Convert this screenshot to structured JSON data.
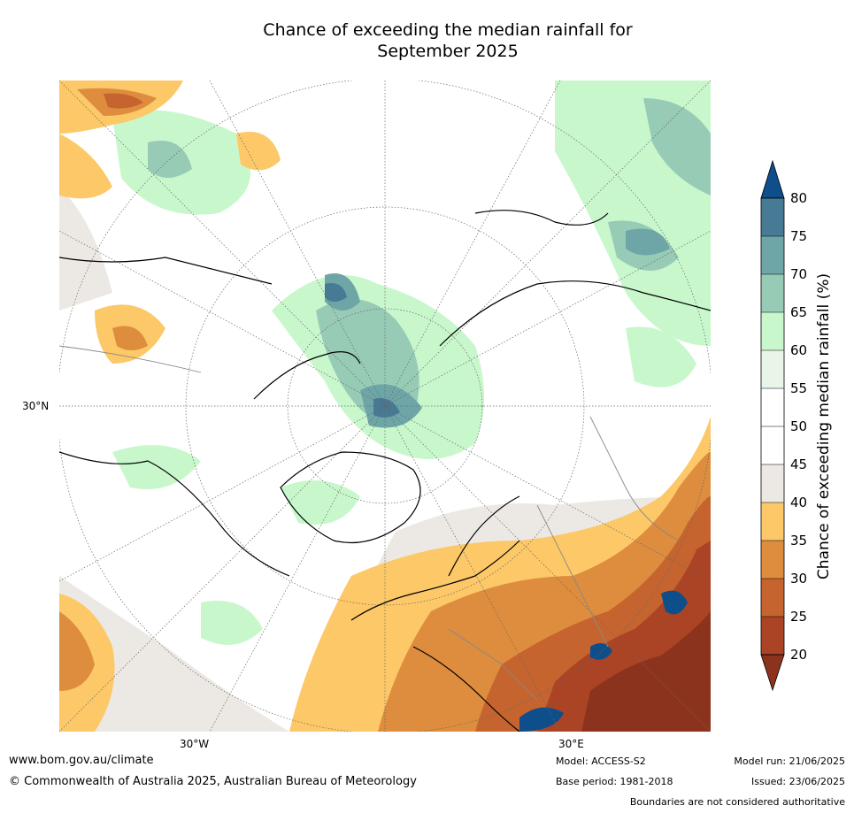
{
  "title": {
    "line1": "Chance of exceeding the median rainfall for",
    "line2": "September 2025"
  },
  "map": {
    "projection": "north-polar-stereographic",
    "graticule_labels": {
      "latitude": "30°N",
      "longitude_left": "30°W",
      "longitude_right": "30°E"
    }
  },
  "colorbar": {
    "label": "Chance of exceeding median rainfall (%)",
    "ticks": [
      "80",
      "75",
      "70",
      "65",
      "60",
      "55",
      "50",
      "45",
      "40",
      "35",
      "30",
      "25",
      "20"
    ],
    "colors": {
      "above_80": "#0e4e8a",
      "75_80": "#467a95",
      "70_75": "#6ea6a8",
      "65_70": "#97cbb6",
      "60_65": "#c9f7cc",
      "55_60": "#e9f5e9",
      "50_55": "#ffffff",
      "45_50": "#ffffff",
      "40_45": "#ece9e4",
      "35_40": "#fcc868",
      "30_35": "#dd8d3d",
      "25_30": "#c6642f",
      "20_25": "#ab4425",
      "below_20": "#8c331d"
    }
  },
  "footer": {
    "website": "www.bom.gov.au/climate",
    "copyright": "© Commonwealth of Australia 2025, Australian Bureau of Meteorology",
    "model": "Model: ACCESS-S2",
    "base_period": "Base period: 1981-2018",
    "model_run": "Model run: 21/06/2025",
    "issued": "Issued: 23/06/2025",
    "disclaimer": "Boundaries are not considered authoritative"
  }
}
